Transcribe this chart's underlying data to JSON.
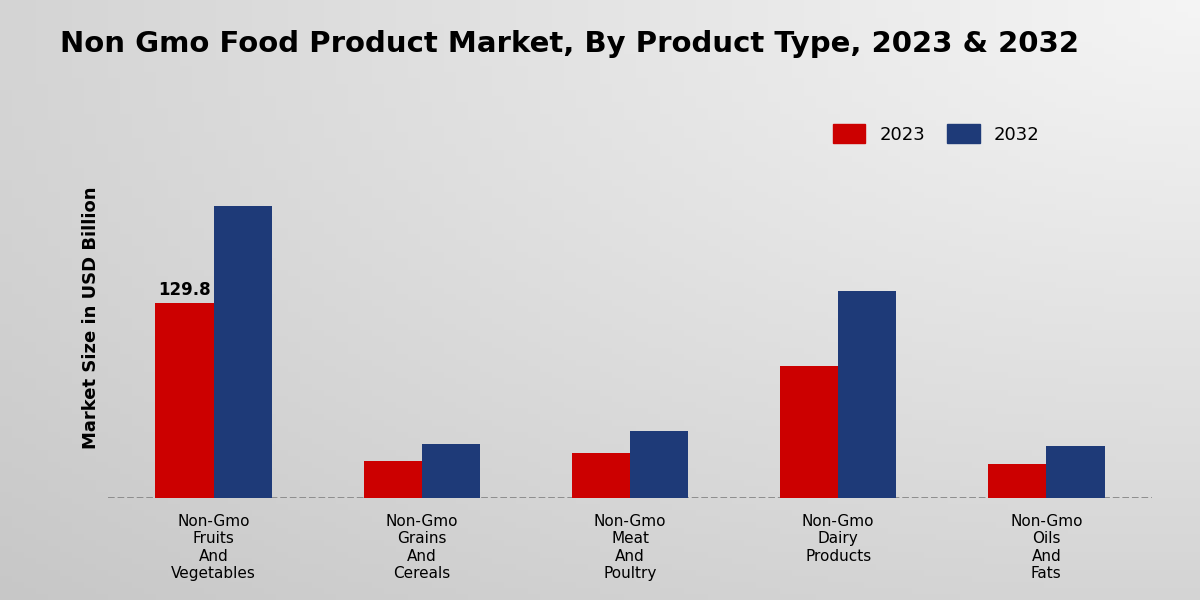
{
  "title": "Non Gmo Food Product Market, By Product Type, 2023 & 2032",
  "ylabel": "Market Size in USD Billion",
  "categories": [
    "Non-Gmo\nFruits\nAnd\nVegetables",
    "Non-Gmo\nGrains\nAnd\nCereals",
    "Non-Gmo\nMeat\nAnd\nPoultry",
    "Non-Gmo\nDairy\nProducts",
    "Non-Gmo\nOils\nAnd\nFats"
  ],
  "values_2023": [
    129.8,
    25.0,
    30.0,
    88.0,
    23.0
  ],
  "values_2032": [
    195.0,
    36.0,
    45.0,
    138.0,
    35.0
  ],
  "color_2023": "#cc0000",
  "color_2032": "#1e3a78",
  "annotation_text": "129.8",
  "annotation_category_idx": 0,
  "bg_light": "#f0f0f0",
  "bg_dark": "#c8c8c8",
  "title_fontsize": 21,
  "ylabel_fontsize": 13,
  "tick_fontsize": 11,
  "legend_fontsize": 13,
  "bar_width": 0.28,
  "ylim_max": 240,
  "legend_labels": [
    "2023",
    "2032"
  ],
  "footer_color": "#cc0000"
}
